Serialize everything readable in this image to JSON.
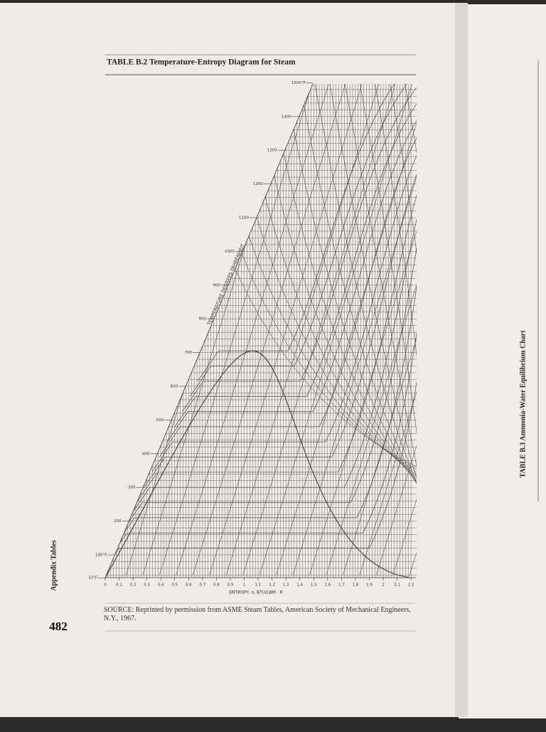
{
  "header": {
    "title": "TABLE B.2 Temperature-Entropy Diagram for Steam"
  },
  "figure": {
    "x_title": "ENTROPY, s, BTU/LBM · R",
    "y_title": "TEMPERATURE DEGREES FAHRENHEIT",
    "x_ticks": [
      0,
      0.1,
      0.2,
      0.3,
      0.4,
      0.5,
      0.6,
      0.7,
      0.8,
      0.9,
      1.0,
      1.1,
      1.2,
      1.3,
      1.4,
      1.5,
      1.6,
      1.7,
      1.8,
      1.9,
      2.0,
      2.1,
      2.2
    ],
    "y_ticks": [
      {
        "value": 32,
        "label": "32°F"
      },
      {
        "value": 100,
        "label": "100°F"
      },
      200,
      300,
      400,
      500,
      600,
      700,
      800,
      900,
      1000,
      1100,
      1200,
      1300,
      1400,
      {
        "value": 1500,
        "label": "1500°F"
      }
    ]
  },
  "source": "SOURCE: Reprinted by permission from ASME Steam Tables, American Society of Mechanical Engineers, N.Y., 1967.",
  "side_label": "Appendix Tables",
  "page_number": "482",
  "next_page_title": "TABLE B.3 Ammonia-Water Equilibrium Chart"
}
